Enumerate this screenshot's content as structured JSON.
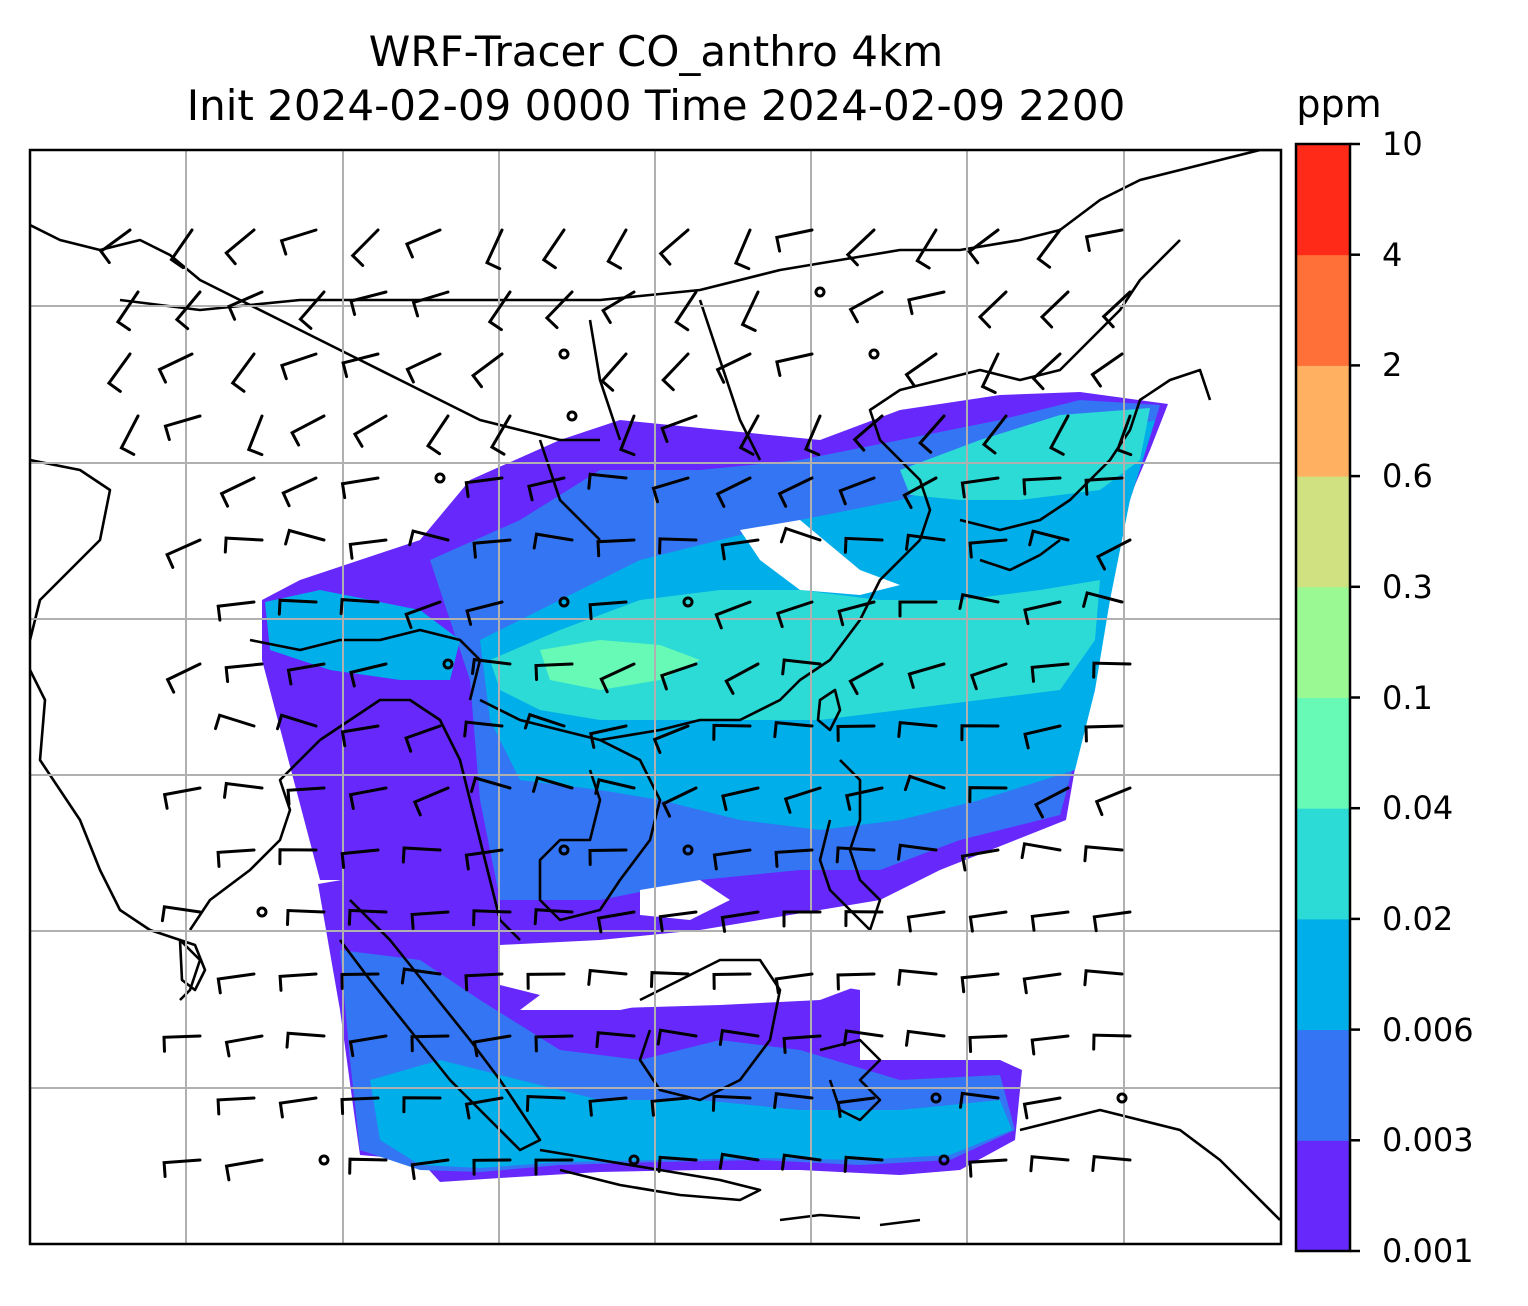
{
  "title": {
    "line1": "WRF-Tracer CO_anthro 4km",
    "line2": "Init 2024-02-09 0000 Time 2024-02-09 2200"
  },
  "chart_data": {
    "type": "heatmap",
    "title": "WRF-Tracer CO_anthro 4km",
    "subtitle": "Init 2024-02-09 0000 Time 2024-02-09 2200",
    "grid": true,
    "overlays": [
      "coastlines",
      "country borders",
      "wind barbs"
    ],
    "colorbar": {
      "label": "ppm",
      "placement": "right",
      "levels": [
        "0.001",
        "0.003",
        "0.006",
        "0.02",
        "0.04",
        "0.1",
        "0.3",
        "0.6",
        "2",
        "4",
        "10"
      ],
      "colors": [
        "#6628fb",
        "#3475f3",
        "#00aee9",
        "#2cdbd6",
        "#67f9b6",
        "#9bf994",
        "#d0e182",
        "#ffb060",
        "#ff7039",
        "#ff2a18"
      ]
    }
  }
}
